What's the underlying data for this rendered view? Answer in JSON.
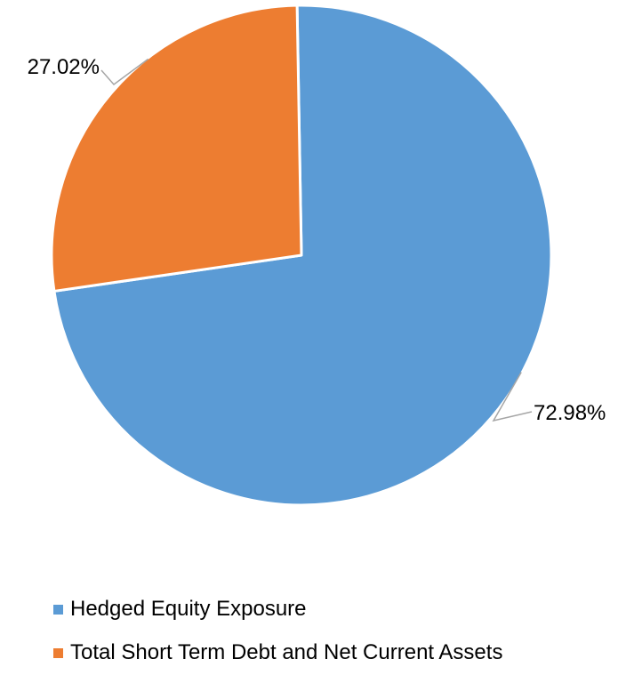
{
  "chart_data": {
    "type": "pie",
    "title": "",
    "slices": [
      {
        "name": "Hedged Equity Exposure",
        "value": 72.98,
        "label": "72.98%",
        "color": "#5B9BD5"
      },
      {
        "name": "Total Short Term Debt and Net Current Assets",
        "value": 27.02,
        "label": "27.02%",
        "color": "#ED7D31"
      }
    ],
    "legend_position": "bottom-left"
  },
  "legend": {
    "items": [
      {
        "label": "Hedged Equity Exposure",
        "color": "#5B9BD5"
      },
      {
        "label": "Total Short Term Debt and Net Current Assets",
        "color": "#ED7D31"
      }
    ]
  }
}
